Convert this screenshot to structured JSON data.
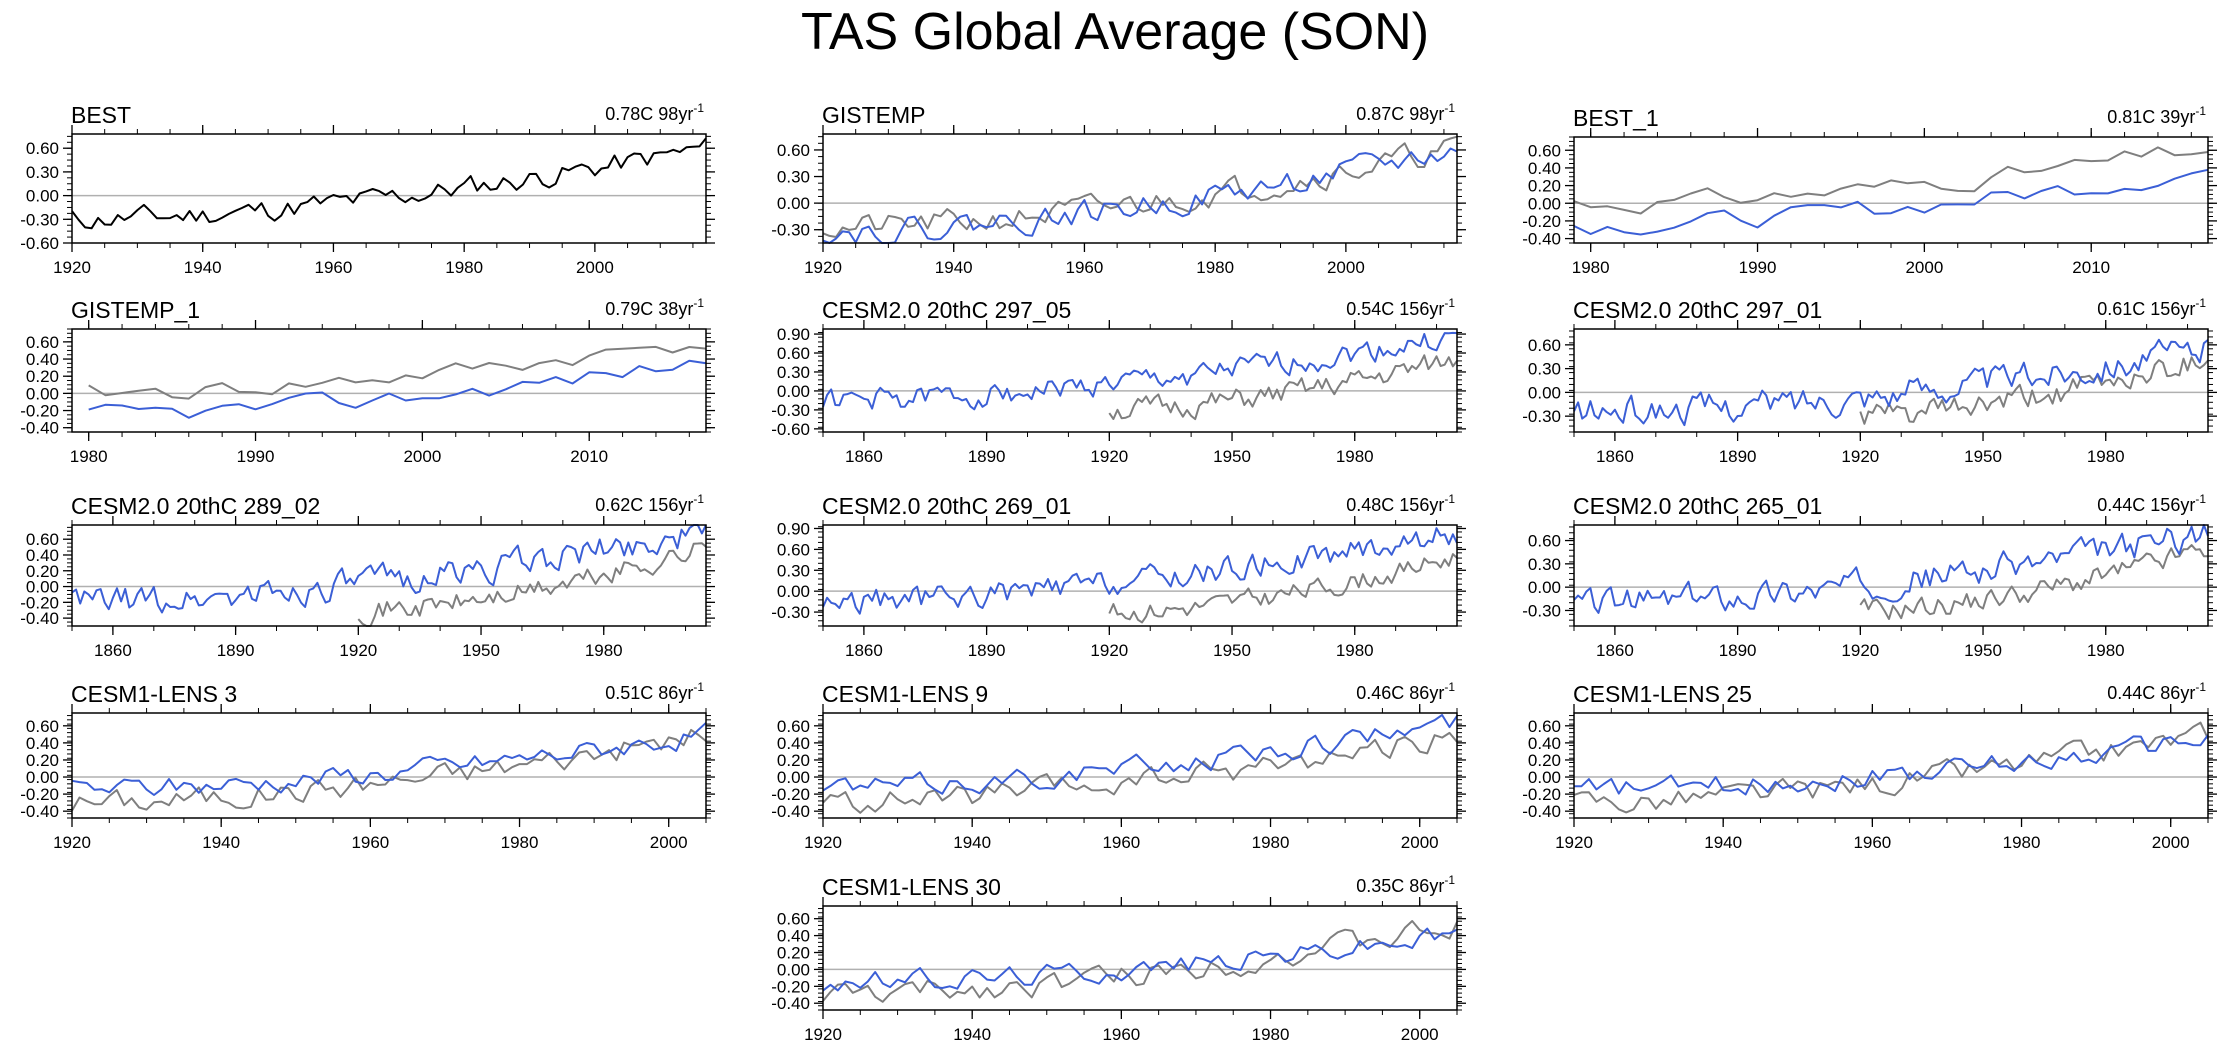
{
  "title": "TAS Global Average (SON)",
  "colors": {
    "obs": "#7f7f7f",
    "model": "#3b5fd6",
    "best": "#000000",
    "zero": "#b0b0b0"
  },
  "chart_data": [
    {
      "type": "line",
      "id": "best",
      "title": "BEST",
      "trend_value": "0.78C 98yr",
      "trend_exp": "-1",
      "xlim": [
        1920,
        2017
      ],
      "xticks": [
        "1920",
        "1940",
        "1960",
        "1980",
        "2000"
      ],
      "ylim": [
        -0.6,
        0.78
      ],
      "yticks": [
        "0.60",
        "0.30",
        "0.00",
        "-0.30",
        "-0.60"
      ],
      "series": [
        {
          "name": "BEST",
          "role": "best",
          "start": 1920,
          "end": 2017,
          "base": -0.3,
          "slope_end": 0.6,
          "amp": 0.08,
          "seed": 11
        }
      ]
    },
    {
      "type": "line",
      "id": "gistemp",
      "title": "GISTEMP",
      "trend_value": "0.87C 98yr",
      "trend_exp": "-1",
      "xlim": [
        1920,
        2017
      ],
      "xticks": [
        "1920",
        "1940",
        "1960",
        "1980",
        "2000"
      ],
      "ylim": [
        -0.45,
        0.78
      ],
      "yticks": [
        "0.60",
        "0.30",
        "0.00",
        "-0.30"
      ],
      "series": [
        {
          "name": "observed",
          "role": "obs",
          "start": 1920,
          "end": 2017,
          "base": -0.28,
          "slope_end": 0.62,
          "amp": 0.08,
          "seed": 21
        },
        {
          "name": "GISTEMP",
          "role": "model",
          "start": 1920,
          "end": 2017,
          "base": -0.32,
          "slope_end": 0.6,
          "amp": 0.08,
          "seed": 22
        }
      ]
    },
    {
      "type": "line",
      "id": "best1",
      "title": "BEST_1",
      "trend_value": "0.81C 39yr",
      "trend_exp": "-1",
      "xlim": [
        1979,
        2017
      ],
      "xticks": [
        "1980",
        "1990",
        "2000",
        "2010"
      ],
      "ylim": [
        -0.45,
        0.75
      ],
      "yticks": [
        "0.60",
        "0.40",
        "0.20",
        "0.00",
        "-0.20",
        "-0.40"
      ],
      "series": [
        {
          "name": "observed",
          "role": "obs",
          "start": 1979,
          "end": 2017,
          "base": 0.0,
          "slope_end": 0.62,
          "amp": 0.06,
          "seed": 31
        },
        {
          "name": "BEST_1",
          "role": "model",
          "start": 1979,
          "end": 2017,
          "base": -0.25,
          "slope_end": 0.38,
          "amp": 0.06,
          "seed": 32
        }
      ]
    },
    {
      "type": "line",
      "id": "gistemp1",
      "title": "GISTEMP_1",
      "trend_value": "0.79C 38yr",
      "trend_exp": "-1",
      "xlim": [
        1979,
        2017
      ],
      "xticks": [
        "1980",
        "1990",
        "2000",
        "2010"
      ],
      "ylim": [
        -0.45,
        0.75
      ],
      "yticks": [
        "0.60",
        "0.40",
        "0.20",
        "0.00",
        "-0.20",
        "-0.40"
      ],
      "series": [
        {
          "name": "observed",
          "role": "obs",
          "start": 1980,
          "end": 2017,
          "base": 0.0,
          "slope_end": 0.62,
          "amp": 0.06,
          "seed": 41
        },
        {
          "name": "GISTEMP_1",
          "role": "model",
          "start": 1980,
          "end": 2017,
          "base": -0.25,
          "slope_end": 0.38,
          "amp": 0.06,
          "seed": 42
        }
      ]
    },
    {
      "type": "line",
      "id": "c297_05",
      "title": "CESM2.0 20thC 297_05",
      "trend_value": "0.54C 156yr",
      "trend_exp": "-1",
      "xlim": [
        1850,
        2005
      ],
      "xticks": [
        "1860",
        "1890",
        "1920",
        "1950",
        "1980"
      ],
      "ylim": [
        -0.65,
        0.98
      ],
      "yticks": [
        "0.90",
        "0.60",
        "0.30",
        "0.00",
        "-0.30",
        "-0.60"
      ],
      "series": [
        {
          "name": "observed",
          "role": "obs",
          "start": 1920,
          "end": 2005,
          "base": -0.3,
          "slope_end": 0.5,
          "amp": 0.1,
          "seed": 51
        },
        {
          "name": "CESM2.0 20thC 297_05",
          "role": "model",
          "start": 1850,
          "end": 2005,
          "base": -0.15,
          "slope_end": 0.85,
          "amp": 0.1,
          "seed": 52
        }
      ]
    },
    {
      "type": "line",
      "id": "c297_01",
      "title": "CESM2.0 20thC 297_01",
      "trend_value": "0.61C 156yr",
      "trend_exp": "-1",
      "xlim": [
        1850,
        2005
      ],
      "xticks": [
        "1860",
        "1890",
        "1920",
        "1950",
        "1980"
      ],
      "ylim": [
        -0.5,
        0.8
      ],
      "yticks": [
        "0.60",
        "0.30",
        "0.00",
        "-0.30"
      ],
      "series": [
        {
          "name": "observed",
          "role": "obs",
          "start": 1920,
          "end": 2005,
          "base": -0.3,
          "slope_end": 0.45,
          "amp": 0.09,
          "seed": 61
        },
        {
          "name": "CESM2.0 20thC 297_01",
          "role": "model",
          "start": 1850,
          "end": 2005,
          "base": -0.25,
          "slope_end": 0.55,
          "amp": 0.1,
          "seed": 62
        }
      ]
    },
    {
      "type": "line",
      "id": "c289_02",
      "title": "CESM2.0 20thC 289_02",
      "trend_value": "0.62C 156yr",
      "trend_exp": "-1",
      "xlim": [
        1850,
        2005
      ],
      "xticks": [
        "1860",
        "1890",
        "1920",
        "1950",
        "1980"
      ],
      "ylim": [
        -0.5,
        0.78
      ],
      "yticks": [
        "0.60",
        "0.40",
        "0.20",
        "0.00",
        "-0.20",
        "-0.40"
      ],
      "series": [
        {
          "name": "observed",
          "role": "obs",
          "start": 1920,
          "end": 2005,
          "base": -0.3,
          "slope_end": 0.5,
          "amp": 0.08,
          "seed": 71
        },
        {
          "name": "CESM2.0 20thC 289_02",
          "role": "model",
          "start": 1850,
          "end": 2005,
          "base": -0.2,
          "slope_end": 0.7,
          "amp": 0.1,
          "seed": 72
        }
      ]
    },
    {
      "type": "line",
      "id": "c269_01",
      "title": "CESM2.0 20thC 269_01",
      "trend_value": "0.48C 156yr",
      "trend_exp": "-1",
      "xlim": [
        1850,
        2005
      ],
      "xticks": [
        "1860",
        "1890",
        "1920",
        "1950",
        "1980"
      ],
      "ylim": [
        -0.5,
        0.95
      ],
      "yticks": [
        "0.90",
        "0.60",
        "0.30",
        "0.00",
        "-0.30"
      ],
      "series": [
        {
          "name": "observed",
          "role": "obs",
          "start": 1920,
          "end": 2005,
          "base": -0.3,
          "slope_end": 0.5,
          "amp": 0.08,
          "seed": 81
        },
        {
          "name": "CESM2.0 20thC 269_01",
          "role": "model",
          "start": 1850,
          "end": 2005,
          "base": -0.15,
          "slope_end": 0.85,
          "amp": 0.1,
          "seed": 82
        }
      ]
    },
    {
      "type": "line",
      "id": "c265_01",
      "title": "CESM2.0 20thC 265_01",
      "trend_value": "0.44C 156yr",
      "trend_exp": "-1",
      "xlim": [
        1850,
        2005
      ],
      "xticks": [
        "1860",
        "1890",
        "1920",
        "1950",
        "1980"
      ],
      "ylim": [
        -0.5,
        0.8
      ],
      "yticks": [
        "0.60",
        "0.30",
        "0.00",
        "-0.30"
      ],
      "series": [
        {
          "name": "observed",
          "role": "obs",
          "start": 1920,
          "end": 2005,
          "base": -0.3,
          "slope_end": 0.5,
          "amp": 0.08,
          "seed": 91
        },
        {
          "name": "CESM2.0 20thC 265_01",
          "role": "model",
          "start": 1850,
          "end": 2005,
          "base": -0.2,
          "slope_end": 0.7,
          "amp": 0.1,
          "seed": 92
        }
      ]
    },
    {
      "type": "line",
      "id": "lens3",
      "title": "CESM1-LENS 3",
      "trend_value": "0.51C 86yr",
      "trend_exp": "-1",
      "xlim": [
        1920,
        2005
      ],
      "xticks": [
        "1920",
        "1940",
        "1960",
        "1980",
        "2000"
      ],
      "ylim": [
        -0.48,
        0.75
      ],
      "yticks": [
        "0.60",
        "0.40",
        "0.20",
        "0.00",
        "-0.20",
        "-0.40"
      ],
      "series": [
        {
          "name": "observed",
          "role": "obs",
          "start": 1920,
          "end": 2005,
          "base": -0.3,
          "slope_end": 0.5,
          "amp": 0.08,
          "seed": 101
        },
        {
          "name": "CESM1-LENS 3",
          "role": "model",
          "start": 1920,
          "end": 2005,
          "base": -0.15,
          "slope_end": 0.5,
          "amp": 0.07,
          "seed": 102
        }
      ]
    },
    {
      "type": "line",
      "id": "lens9",
      "title": "CESM1-LENS 9",
      "trend_value": "0.46C 86yr",
      "trend_exp": "-1",
      "xlim": [
        1920,
        2005
      ],
      "xticks": [
        "1920",
        "1940",
        "1960",
        "1980",
        "2000"
      ],
      "ylim": [
        -0.48,
        0.75
      ],
      "yticks": [
        "0.60",
        "0.40",
        "0.20",
        "0.00",
        "-0.20",
        "-0.40"
      ],
      "series": [
        {
          "name": "observed",
          "role": "obs",
          "start": 1920,
          "end": 2005,
          "base": -0.3,
          "slope_end": 0.5,
          "amp": 0.08,
          "seed": 111
        },
        {
          "name": "CESM1-LENS 9",
          "role": "model",
          "start": 1920,
          "end": 2005,
          "base": -0.12,
          "slope_end": 0.65,
          "amp": 0.07,
          "seed": 112
        }
      ]
    },
    {
      "type": "line",
      "id": "lens25",
      "title": "CESM1-LENS 25",
      "trend_value": "0.44C 86yr",
      "trend_exp": "-1",
      "xlim": [
        1920,
        2005
      ],
      "xticks": [
        "1920",
        "1940",
        "1960",
        "1980",
        "2000"
      ],
      "ylim": [
        -0.48,
        0.75
      ],
      "yticks": [
        "0.60",
        "0.40",
        "0.20",
        "0.00",
        "-0.20",
        "-0.40"
      ],
      "series": [
        {
          "name": "observed",
          "role": "obs",
          "start": 1920,
          "end": 2005,
          "base": -0.3,
          "slope_end": 0.5,
          "amp": 0.08,
          "seed": 121
        },
        {
          "name": "CESM1-LENS 25",
          "role": "model",
          "start": 1920,
          "end": 2005,
          "base": -0.15,
          "slope_end": 0.45,
          "amp": 0.07,
          "seed": 122
        }
      ]
    },
    {
      "type": "line",
      "id": "lens30",
      "title": "CESM1-LENS 30",
      "trend_value": "0.35C 86yr",
      "trend_exp": "-1",
      "xlim": [
        1920,
        2005
      ],
      "xticks": [
        "1920",
        "1940",
        "1960",
        "1980",
        "2000"
      ],
      "ylim": [
        -0.48,
        0.75
      ],
      "yticks": [
        "0.60",
        "0.40",
        "0.20",
        "0.00",
        "-0.20",
        "-0.40"
      ],
      "series": [
        {
          "name": "observed",
          "role": "obs",
          "start": 1920,
          "end": 2005,
          "base": -0.3,
          "slope_end": 0.5,
          "amp": 0.08,
          "seed": 131
        },
        {
          "name": "CESM1-LENS 30",
          "role": "model",
          "start": 1920,
          "end": 2005,
          "base": -0.15,
          "slope_end": 0.4,
          "amp": 0.07,
          "seed": 132
        }
      ]
    }
  ]
}
